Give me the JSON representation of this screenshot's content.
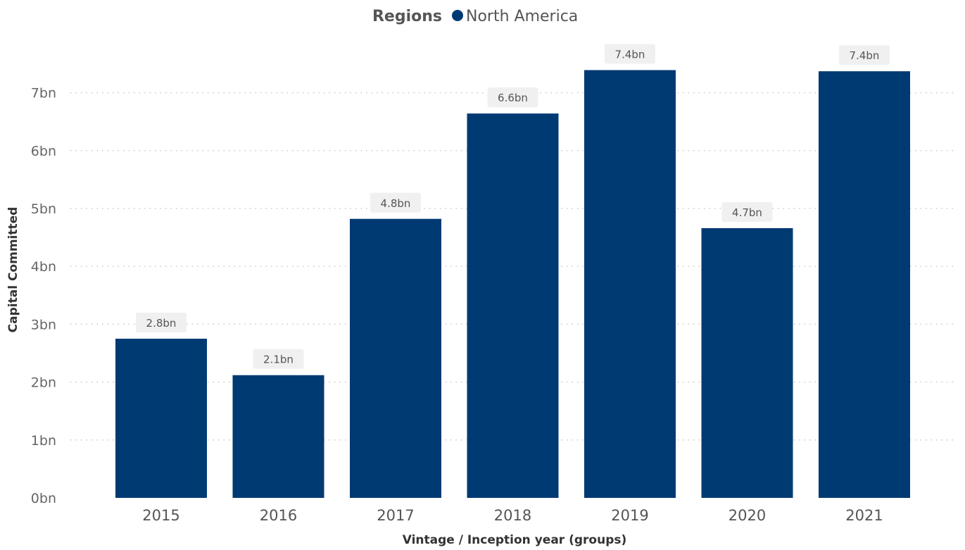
{
  "legend": {
    "title": "Regions",
    "items": [
      {
        "label": "North America",
        "color": "#003a73"
      }
    ]
  },
  "chart_data": {
    "type": "bar",
    "title": "",
    "xlabel": "Vintage / Inception year (groups)",
    "ylabel": "Capital Committed",
    "categories": [
      "2015",
      "2016",
      "2017",
      "2018",
      "2019",
      "2020",
      "2021"
    ],
    "series": [
      {
        "name": "North America",
        "color": "#003a73",
        "values": [
          2.75,
          2.12,
          4.82,
          6.64,
          7.39,
          4.66,
          7.37
        ],
        "labels": [
          "2.8bn",
          "2.1bn",
          "4.8bn",
          "6.6bn",
          "7.4bn",
          "4.7bn",
          "7.4bn"
        ]
      }
    ],
    "ylim": [
      0,
      7.4
    ],
    "yticks": [
      0,
      1,
      2,
      3,
      4,
      5,
      6,
      7
    ],
    "ytick_labels": [
      "0bn",
      "1bn",
      "2bn",
      "3bn",
      "4bn",
      "5bn",
      "6bn",
      "7bn"
    ],
    "grid": true,
    "legend_position": "top-center"
  }
}
